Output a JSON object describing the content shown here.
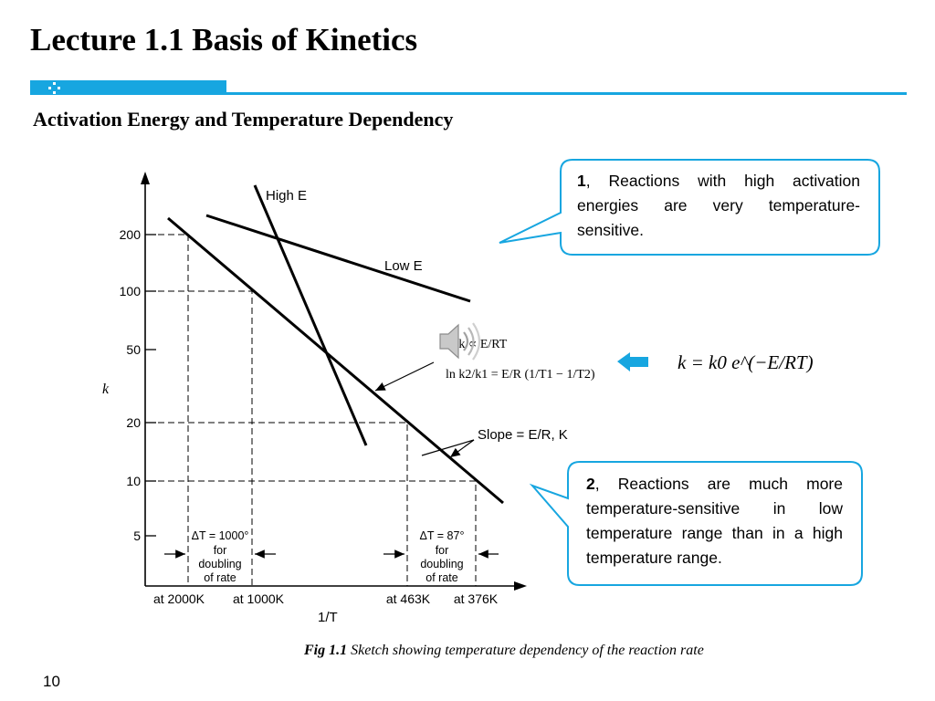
{
  "slide": {
    "title": "Lecture 1.1 Basis of Kinetics",
    "subtitle": "Activation Energy and Temperature Dependency",
    "page_number": "10",
    "accent_color": "#17a6e0"
  },
  "figure": {
    "y_axis_label": "k",
    "x_axis_label": "1/T",
    "y_ticks": [
      "200",
      "100",
      "50",
      "20",
      "10",
      "5"
    ],
    "x_ticks": [
      "at 2000K",
      "at 1000K",
      "at 463K",
      "at 376K"
    ],
    "line_labels": {
      "high": "High E",
      "low": "Low E",
      "slope": "Slope = E/R, K"
    },
    "eq_proportional": "ln k ∝ E/RT",
    "eq_ratio": "ln k2/k1 = E/R (1/T1 − 1/T2)",
    "annotation_left": [
      "ΔT = 1000°",
      "for",
      "doubling",
      "of rate"
    ],
    "annotation_right": [
      "ΔT = 87°",
      "for",
      "doubling",
      "of rate"
    ]
  },
  "arrhenius": "k = k0 e^(−E/RT)",
  "callouts": [
    {
      "num": "1",
      "text": ", Reactions with high activation energies are very temperature-sensitive."
    },
    {
      "num": "2",
      "text": ", Reactions are much more temperature-sensitive in low temperature range than in a high temperature range."
    }
  ],
  "caption": {
    "label": "Fig 1.1",
    "text": " Sketch showing temperature dependency of the reaction rate"
  },
  "icons": [
    "speaker-icon",
    "left-arrow-icon"
  ]
}
